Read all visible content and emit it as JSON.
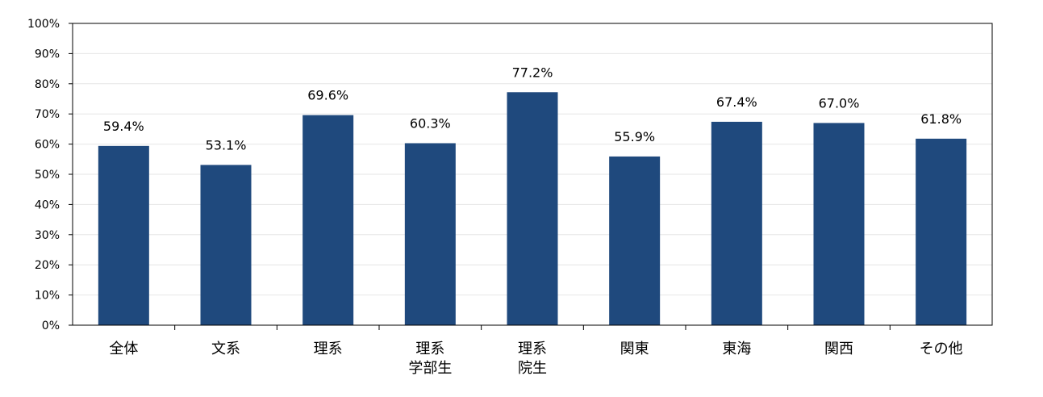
{
  "chart_data": {
    "type": "bar",
    "title": "",
    "xlabel": "",
    "ylabel": "",
    "categories": [
      [
        "全体"
      ],
      [
        "文系"
      ],
      [
        "理系"
      ],
      [
        "理系",
        "学部生"
      ],
      [
        "理系",
        "院生"
      ],
      [
        "関東"
      ],
      [
        "東海"
      ],
      [
        "関西"
      ],
      [
        "その他"
      ]
    ],
    "values": [
      59.4,
      53.1,
      69.6,
      60.3,
      77.2,
      55.9,
      67.4,
      67.0,
      61.8
    ],
    "data_labels": [
      "59.4%",
      "53.1%",
      "69.6%",
      "60.3%",
      "77.2%",
      "55.9%",
      "67.4%",
      "67.0%",
      "61.8%"
    ],
    "ylim": [
      0,
      100
    ],
    "ytick_labels": [
      "0%",
      "10%",
      "20%",
      "30%",
      "40%",
      "50%",
      "60%",
      "70%",
      "80%",
      "90%",
      "100%"
    ],
    "grid": true,
    "legend": "none",
    "colors": {
      "bar": "#1f497d",
      "grid": "#e6e6e6",
      "axis": "#000000"
    }
  }
}
